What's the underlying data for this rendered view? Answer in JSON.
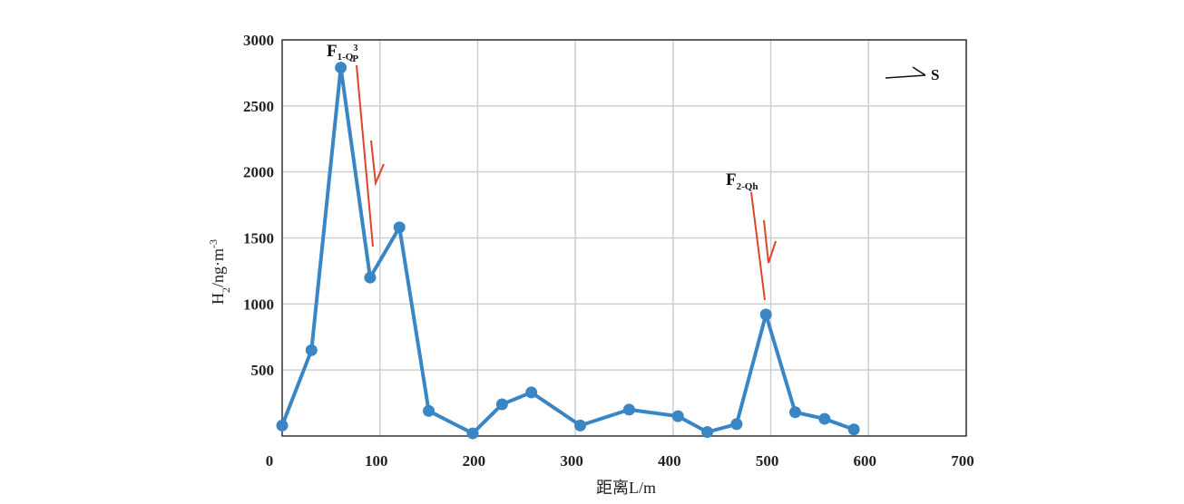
{
  "chart_data": {
    "type": "line",
    "title": "",
    "xlabel": "距离L/m",
    "ylabel": "H2/ng·m-3",
    "xlim": [
      0,
      700
    ],
    "ylim": [
      0,
      3000
    ],
    "xticks": [
      "0",
      "100",
      "200",
      "300",
      "400",
      "500",
      "600",
      "700"
    ],
    "yticks": [
      "500",
      "1000",
      "1500",
      "2000",
      "2500",
      "3000"
    ],
    "grid": true,
    "series": [
      {
        "color": "#3a86c4",
        "x": [
          0,
          30,
          60,
          90,
          120,
          150,
          195,
          225,
          255,
          305,
          355,
          405,
          435,
          465,
          495,
          525,
          555,
          585
        ],
        "y": [
          80,
          650,
          2790,
          1200,
          1580,
          190,
          20,
          240,
          330,
          80,
          200,
          150,
          30,
          90,
          920,
          180,
          130,
          50
        ]
      }
    ],
    "annotations": [
      {
        "id": "f1",
        "main": "F",
        "sub": "1-Q",
        "sub2": "P",
        "sup": "3",
        "x": 65,
        "y": 2820
      },
      {
        "id": "f2",
        "main": "F",
        "sub": "2-Qh",
        "x": 445,
        "y": 1920
      }
    ],
    "direction_label": "S",
    "fault_color": "#e0432a"
  }
}
